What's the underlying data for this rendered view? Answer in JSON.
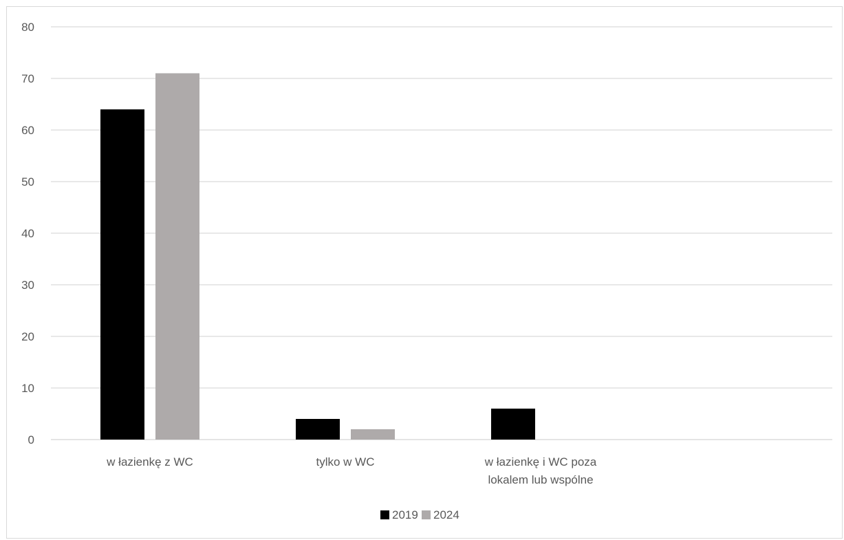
{
  "chart_data": {
    "type": "bar",
    "title": "",
    "xlabel": "",
    "ylabel": "",
    "categories": [
      [
        "w łazienkę z WC"
      ],
      [
        "tylko w WC"
      ],
      [
        "w łazienkę i WC poza",
        "lokalem lub wspólne"
      ]
    ],
    "series": [
      {
        "name": "2019",
        "values": [
          64,
          4,
          6
        ],
        "color": "#000000"
      },
      {
        "name": "2024",
        "values": [
          71,
          2,
          0
        ],
        "color": "#aeaaaa"
      }
    ],
    "ylim": [
      0,
      80
    ],
    "yticks": [
      0,
      10,
      20,
      30,
      40,
      50,
      60,
      70,
      80
    ],
    "grid": true,
    "legend": "bottom-center"
  },
  "colors": {
    "gridline": "#d9d9d9",
    "axis_text": "#595959"
  }
}
